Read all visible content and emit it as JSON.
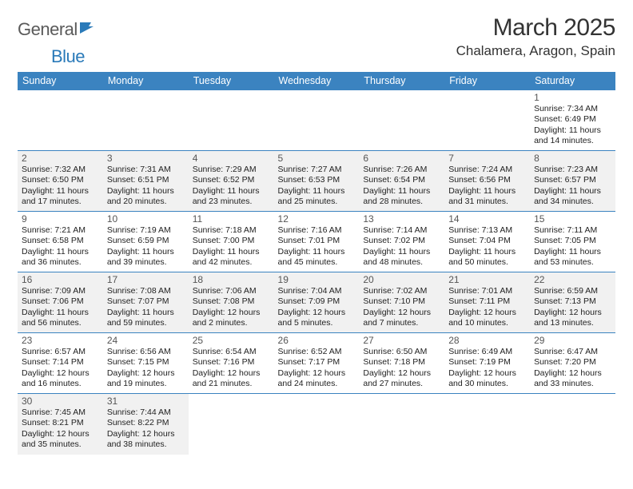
{
  "logo": {
    "word1": "General",
    "word2": "Blue"
  },
  "title": "March 2025",
  "location": "Chalamera, Aragon, Spain",
  "colors": {
    "header_bg": "#3b83c0",
    "header_text": "#ffffff",
    "border": "#3b83c0",
    "shaded_bg": "#f1f1f1",
    "logo_gray": "#5a5a5a",
    "logo_blue": "#2a7ab9"
  },
  "weekdays": [
    "Sunday",
    "Monday",
    "Tuesday",
    "Wednesday",
    "Thursday",
    "Friday",
    "Saturday"
  ],
  "weeks": [
    [
      null,
      null,
      null,
      null,
      null,
      null,
      {
        "day": "1",
        "sunrise": "Sunrise: 7:34 AM",
        "sunset": "Sunset: 6:49 PM",
        "daylight1": "Daylight: 11 hours",
        "daylight2": "and 14 minutes.",
        "shaded": false
      }
    ],
    [
      {
        "day": "2",
        "sunrise": "Sunrise: 7:32 AM",
        "sunset": "Sunset: 6:50 PM",
        "daylight1": "Daylight: 11 hours",
        "daylight2": "and 17 minutes.",
        "shaded": true
      },
      {
        "day": "3",
        "sunrise": "Sunrise: 7:31 AM",
        "sunset": "Sunset: 6:51 PM",
        "daylight1": "Daylight: 11 hours",
        "daylight2": "and 20 minutes.",
        "shaded": true
      },
      {
        "day": "4",
        "sunrise": "Sunrise: 7:29 AM",
        "sunset": "Sunset: 6:52 PM",
        "daylight1": "Daylight: 11 hours",
        "daylight2": "and 23 minutes.",
        "shaded": true
      },
      {
        "day": "5",
        "sunrise": "Sunrise: 7:27 AM",
        "sunset": "Sunset: 6:53 PM",
        "daylight1": "Daylight: 11 hours",
        "daylight2": "and 25 minutes.",
        "shaded": true
      },
      {
        "day": "6",
        "sunrise": "Sunrise: 7:26 AM",
        "sunset": "Sunset: 6:54 PM",
        "daylight1": "Daylight: 11 hours",
        "daylight2": "and 28 minutes.",
        "shaded": true
      },
      {
        "day": "7",
        "sunrise": "Sunrise: 7:24 AM",
        "sunset": "Sunset: 6:56 PM",
        "daylight1": "Daylight: 11 hours",
        "daylight2": "and 31 minutes.",
        "shaded": true
      },
      {
        "day": "8",
        "sunrise": "Sunrise: 7:23 AM",
        "sunset": "Sunset: 6:57 PM",
        "daylight1": "Daylight: 11 hours",
        "daylight2": "and 34 minutes.",
        "shaded": true
      }
    ],
    [
      {
        "day": "9",
        "sunrise": "Sunrise: 7:21 AM",
        "sunset": "Sunset: 6:58 PM",
        "daylight1": "Daylight: 11 hours",
        "daylight2": "and 36 minutes.",
        "shaded": false
      },
      {
        "day": "10",
        "sunrise": "Sunrise: 7:19 AM",
        "sunset": "Sunset: 6:59 PM",
        "daylight1": "Daylight: 11 hours",
        "daylight2": "and 39 minutes.",
        "shaded": false
      },
      {
        "day": "11",
        "sunrise": "Sunrise: 7:18 AM",
        "sunset": "Sunset: 7:00 PM",
        "daylight1": "Daylight: 11 hours",
        "daylight2": "and 42 minutes.",
        "shaded": false
      },
      {
        "day": "12",
        "sunrise": "Sunrise: 7:16 AM",
        "sunset": "Sunset: 7:01 PM",
        "daylight1": "Daylight: 11 hours",
        "daylight2": "and 45 minutes.",
        "shaded": false
      },
      {
        "day": "13",
        "sunrise": "Sunrise: 7:14 AM",
        "sunset": "Sunset: 7:02 PM",
        "daylight1": "Daylight: 11 hours",
        "daylight2": "and 48 minutes.",
        "shaded": false
      },
      {
        "day": "14",
        "sunrise": "Sunrise: 7:13 AM",
        "sunset": "Sunset: 7:04 PM",
        "daylight1": "Daylight: 11 hours",
        "daylight2": "and 50 minutes.",
        "shaded": false
      },
      {
        "day": "15",
        "sunrise": "Sunrise: 7:11 AM",
        "sunset": "Sunset: 7:05 PM",
        "daylight1": "Daylight: 11 hours",
        "daylight2": "and 53 minutes.",
        "shaded": false
      }
    ],
    [
      {
        "day": "16",
        "sunrise": "Sunrise: 7:09 AM",
        "sunset": "Sunset: 7:06 PM",
        "daylight1": "Daylight: 11 hours",
        "daylight2": "and 56 minutes.",
        "shaded": true
      },
      {
        "day": "17",
        "sunrise": "Sunrise: 7:08 AM",
        "sunset": "Sunset: 7:07 PM",
        "daylight1": "Daylight: 11 hours",
        "daylight2": "and 59 minutes.",
        "shaded": true
      },
      {
        "day": "18",
        "sunrise": "Sunrise: 7:06 AM",
        "sunset": "Sunset: 7:08 PM",
        "daylight1": "Daylight: 12 hours",
        "daylight2": "and 2 minutes.",
        "shaded": true
      },
      {
        "day": "19",
        "sunrise": "Sunrise: 7:04 AM",
        "sunset": "Sunset: 7:09 PM",
        "daylight1": "Daylight: 12 hours",
        "daylight2": "and 5 minutes.",
        "shaded": true
      },
      {
        "day": "20",
        "sunrise": "Sunrise: 7:02 AM",
        "sunset": "Sunset: 7:10 PM",
        "daylight1": "Daylight: 12 hours",
        "daylight2": "and 7 minutes.",
        "shaded": true
      },
      {
        "day": "21",
        "sunrise": "Sunrise: 7:01 AM",
        "sunset": "Sunset: 7:11 PM",
        "daylight1": "Daylight: 12 hours",
        "daylight2": "and 10 minutes.",
        "shaded": true
      },
      {
        "day": "22",
        "sunrise": "Sunrise: 6:59 AM",
        "sunset": "Sunset: 7:13 PM",
        "daylight1": "Daylight: 12 hours",
        "daylight2": "and 13 minutes.",
        "shaded": true
      }
    ],
    [
      {
        "day": "23",
        "sunrise": "Sunrise: 6:57 AM",
        "sunset": "Sunset: 7:14 PM",
        "daylight1": "Daylight: 12 hours",
        "daylight2": "and 16 minutes.",
        "shaded": false
      },
      {
        "day": "24",
        "sunrise": "Sunrise: 6:56 AM",
        "sunset": "Sunset: 7:15 PM",
        "daylight1": "Daylight: 12 hours",
        "daylight2": "and 19 minutes.",
        "shaded": false
      },
      {
        "day": "25",
        "sunrise": "Sunrise: 6:54 AM",
        "sunset": "Sunset: 7:16 PM",
        "daylight1": "Daylight: 12 hours",
        "daylight2": "and 21 minutes.",
        "shaded": false
      },
      {
        "day": "26",
        "sunrise": "Sunrise: 6:52 AM",
        "sunset": "Sunset: 7:17 PM",
        "daylight1": "Daylight: 12 hours",
        "daylight2": "and 24 minutes.",
        "shaded": false
      },
      {
        "day": "27",
        "sunrise": "Sunrise: 6:50 AM",
        "sunset": "Sunset: 7:18 PM",
        "daylight1": "Daylight: 12 hours",
        "daylight2": "and 27 minutes.",
        "shaded": false
      },
      {
        "day": "28",
        "sunrise": "Sunrise: 6:49 AM",
        "sunset": "Sunset: 7:19 PM",
        "daylight1": "Daylight: 12 hours",
        "daylight2": "and 30 minutes.",
        "shaded": false
      },
      {
        "day": "29",
        "sunrise": "Sunrise: 6:47 AM",
        "sunset": "Sunset: 7:20 PM",
        "daylight1": "Daylight: 12 hours",
        "daylight2": "and 33 minutes.",
        "shaded": false
      }
    ],
    [
      {
        "day": "30",
        "sunrise": "Sunrise: 7:45 AM",
        "sunset": "Sunset: 8:21 PM",
        "daylight1": "Daylight: 12 hours",
        "daylight2": "and 35 minutes.",
        "shaded": true
      },
      {
        "day": "31",
        "sunrise": "Sunrise: 7:44 AM",
        "sunset": "Sunset: 8:22 PM",
        "daylight1": "Daylight: 12 hours",
        "daylight2": "and 38 minutes.",
        "shaded": true
      },
      null,
      null,
      null,
      null,
      null
    ]
  ]
}
